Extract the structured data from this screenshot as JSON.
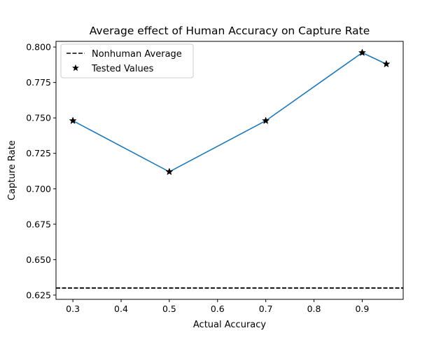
{
  "chart_data": {
    "type": "line",
    "title": "Average effect of Human Accuracy on Capture Rate",
    "xlabel": "Actual Accuracy",
    "ylabel": "Capture Rate",
    "xlim": [
      0.265,
      0.985
    ],
    "ylim": [
      0.622,
      0.804
    ],
    "x_ticks": [
      0.3,
      0.4,
      0.5,
      0.6,
      0.7,
      0.8,
      0.9
    ],
    "y_ticks": [
      0.625,
      0.65,
      0.675,
      0.7,
      0.725,
      0.75,
      0.775,
      0.8
    ],
    "grid": false,
    "legend_position": "top-left",
    "series": [
      {
        "name": "Tested Values",
        "kind": "line-with-star-markers",
        "color": "#1f77b4",
        "marker_color": "#000000",
        "x": [
          0.3,
          0.5,
          0.7,
          0.9,
          0.95
        ],
        "y": [
          0.748,
          0.712,
          0.748,
          0.796,
          0.788
        ]
      },
      {
        "name": "Nonhuman Average",
        "kind": "horizontal-dashed-line",
        "color": "#000000",
        "y": 0.63
      }
    ]
  }
}
